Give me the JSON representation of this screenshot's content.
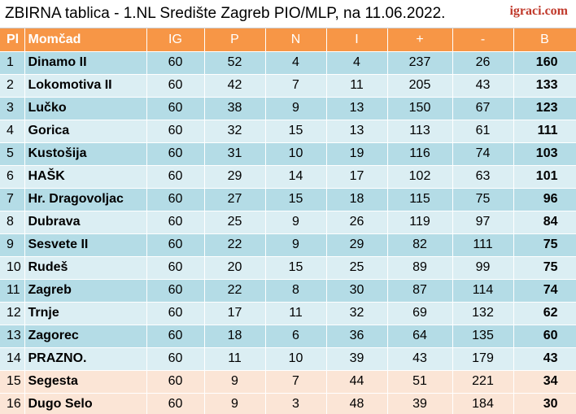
{
  "header": {
    "title": "ZBIRNA tablica - 1.NL Središte Zagreb PIO/MLP, na 11.06.2022.",
    "logo": "igraci.com"
  },
  "columns": [
    "Pl",
    "Momčad",
    "IG",
    "P",
    "N",
    "I",
    "+",
    "-",
    "B"
  ],
  "rows": [
    {
      "pl": "1",
      "team": "Dinamo II",
      "ig": "60",
      "p": "52",
      "n": "4",
      "i": "4",
      "plus": "237",
      "minus": "26",
      "b": "160",
      "zone": "normal"
    },
    {
      "pl": "2",
      "team": "Lokomotiva II",
      "ig": "60",
      "p": "42",
      "n": "7",
      "i": "11",
      "plus": "205",
      "minus": "43",
      "b": "133",
      "zone": "normal"
    },
    {
      "pl": "3",
      "team": "Lučko",
      "ig": "60",
      "p": "38",
      "n": "9",
      "i": "13",
      "plus": "150",
      "minus": "67",
      "b": "123",
      "zone": "normal"
    },
    {
      "pl": "4",
      "team": "Gorica",
      "ig": "60",
      "p": "32",
      "n": "15",
      "i": "13",
      "plus": "113",
      "minus": "61",
      "b": "111",
      "zone": "normal"
    },
    {
      "pl": "5",
      "team": "Kustošija",
      "ig": "60",
      "p": "31",
      "n": "10",
      "i": "19",
      "plus": "116",
      "minus": "74",
      "b": "103",
      "zone": "normal"
    },
    {
      "pl": "6",
      "team": "HAŠK",
      "ig": "60",
      "p": "29",
      "n": "14",
      "i": "17",
      "plus": "102",
      "minus": "63",
      "b": "101",
      "zone": "normal"
    },
    {
      "pl": "7",
      "team": "Hr. Dragovoljac",
      "ig": "60",
      "p": "27",
      "n": "15",
      "i": "18",
      "plus": "115",
      "minus": "75",
      "b": "96",
      "zone": "normal"
    },
    {
      "pl": "8",
      "team": "Dubrava",
      "ig": "60",
      "p": "25",
      "n": "9",
      "i": "26",
      "plus": "119",
      "minus": "97",
      "b": "84",
      "zone": "normal"
    },
    {
      "pl": "9",
      "team": "Sesvete II",
      "ig": "60",
      "p": "22",
      "n": "9",
      "i": "29",
      "plus": "82",
      "minus": "111",
      "b": "75",
      "zone": "normal"
    },
    {
      "pl": "10",
      "team": "Rudeš",
      "ig": "60",
      "p": "20",
      "n": "15",
      "i": "25",
      "plus": "89",
      "minus": "99",
      "b": "75",
      "zone": "normal"
    },
    {
      "pl": "11",
      "team": "Zagreb",
      "ig": "60",
      "p": "22",
      "n": "8",
      "i": "30",
      "plus": "87",
      "minus": "114",
      "b": "74",
      "zone": "normal"
    },
    {
      "pl": "12",
      "team": "Trnje",
      "ig": "60",
      "p": "17",
      "n": "11",
      "i": "32",
      "plus": "69",
      "minus": "132",
      "b": "62",
      "zone": "normal"
    },
    {
      "pl": "13",
      "team": "Zagorec",
      "ig": "60",
      "p": "18",
      "n": "6",
      "i": "36",
      "plus": "64",
      "minus": "135",
      "b": "60",
      "zone": "normal"
    },
    {
      "pl": "14",
      "team": "PRAZNO.",
      "ig": "60",
      "p": "11",
      "n": "10",
      "i": "39",
      "plus": "43",
      "minus": "179",
      "b": "43",
      "zone": "normal"
    },
    {
      "pl": "15",
      "team": "Segesta",
      "ig": "60",
      "p": "9",
      "n": "7",
      "i": "44",
      "plus": "51",
      "minus": "221",
      "b": "34",
      "zone": "relegation"
    },
    {
      "pl": "16",
      "team": "Dugo Selo",
      "ig": "60",
      "p": "9",
      "n": "3",
      "i": "48",
      "plus": "39",
      "minus": "184",
      "b": "30",
      "zone": "relegation"
    }
  ],
  "colors": {
    "header_bg": "#f79646",
    "row_odd": "#b4dce6",
    "row_even": "#dbeef3",
    "relegation": "#fbe5d6",
    "logo": "#c0392b"
  }
}
